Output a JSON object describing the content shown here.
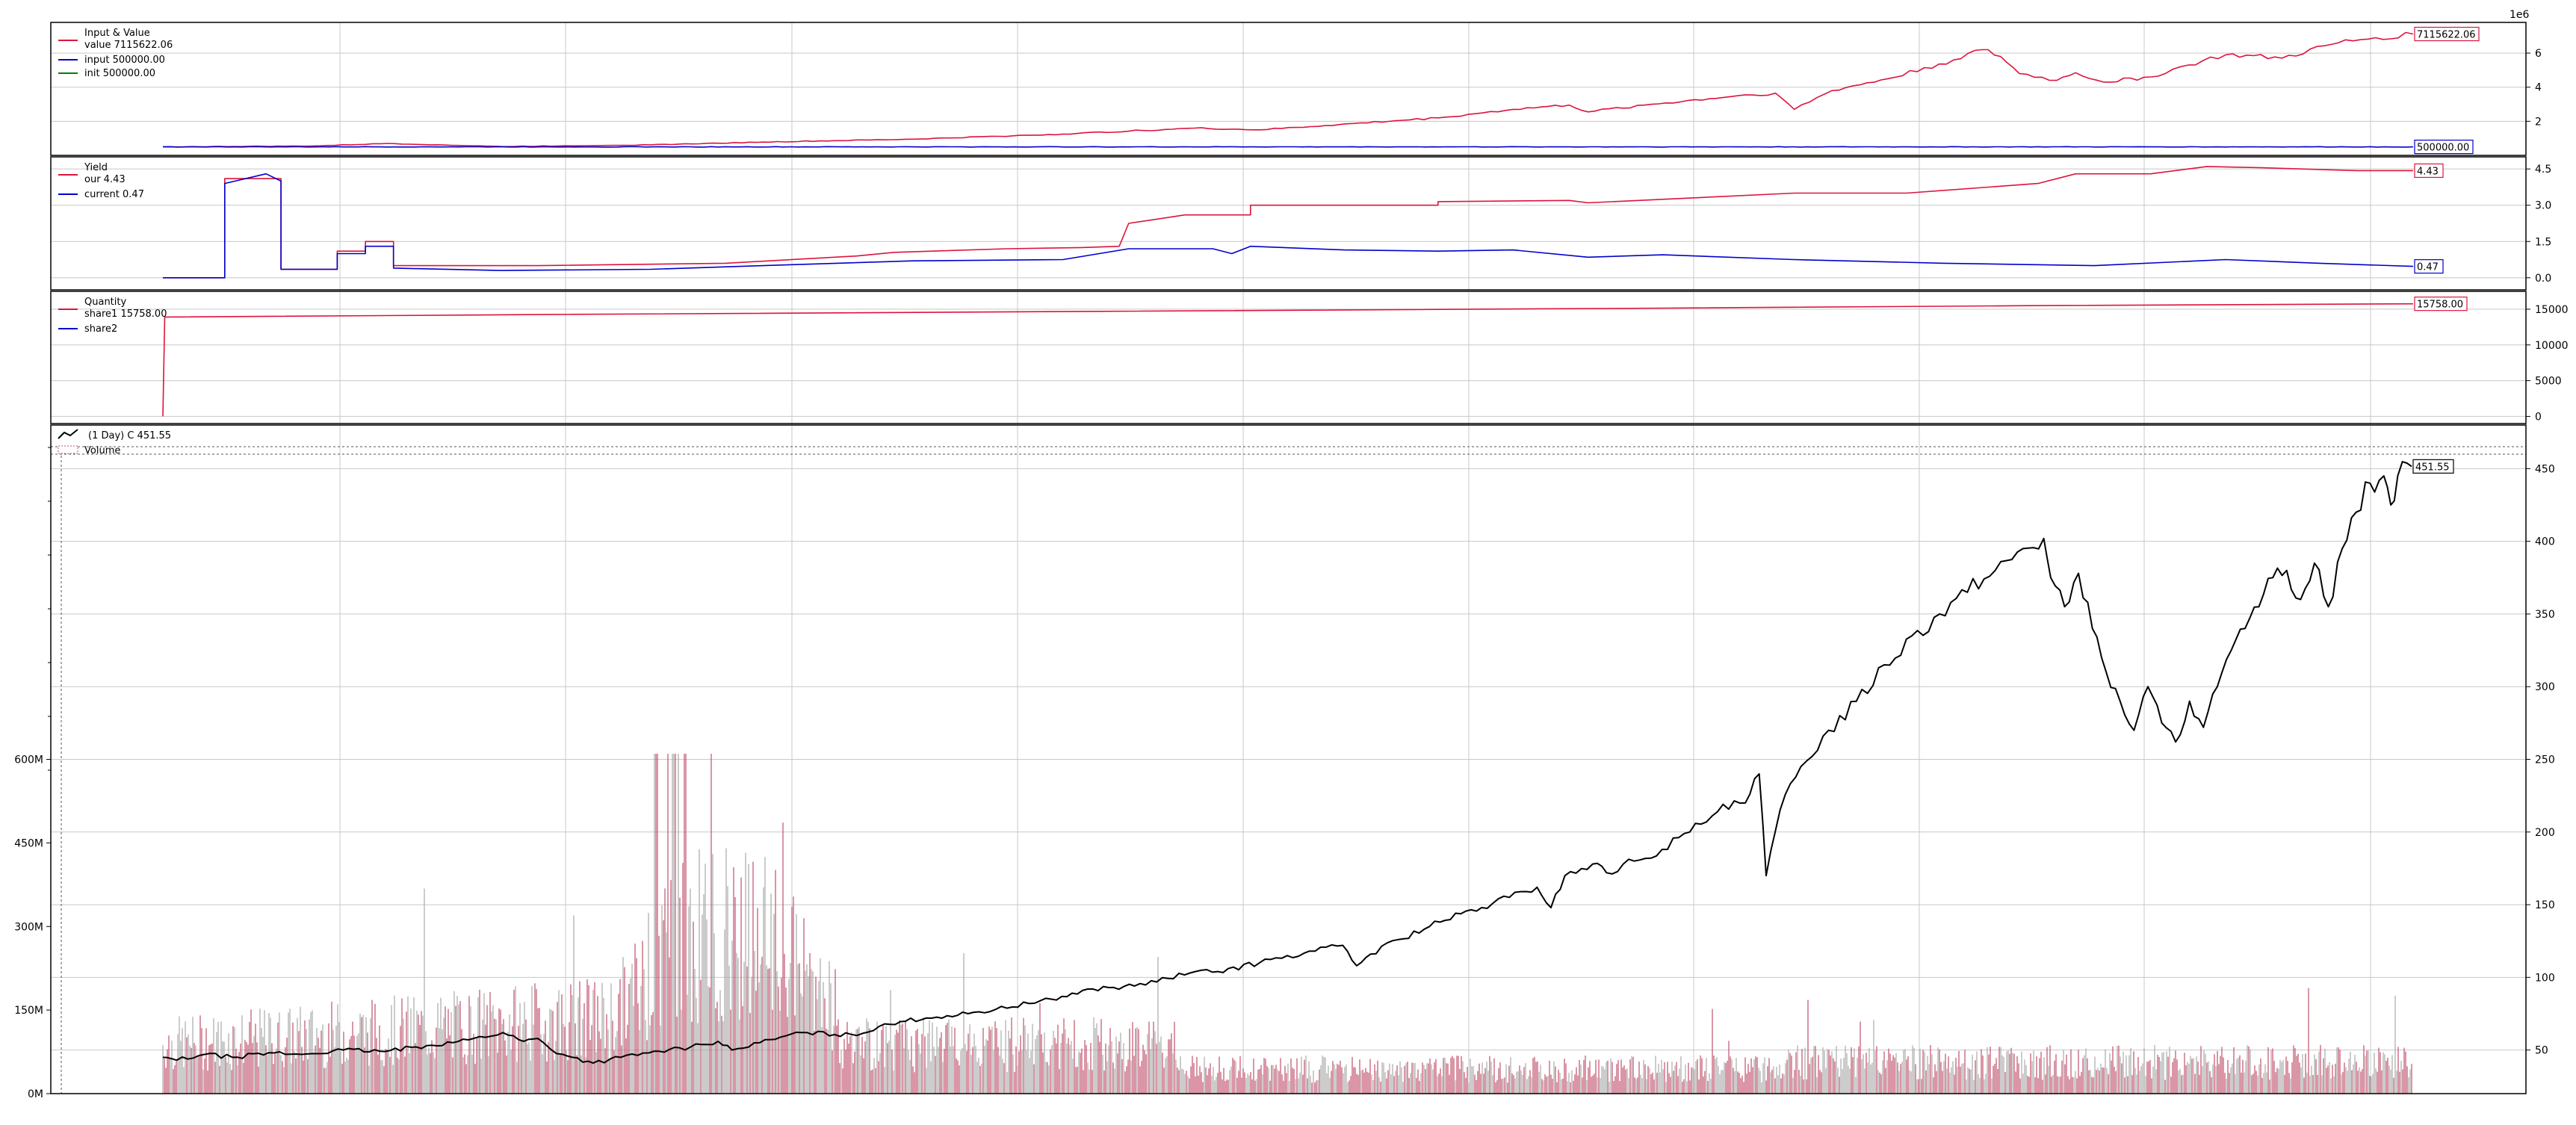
{
  "colors": {
    "red": "#dc143c",
    "blue": "#0000cd",
    "green": "#008000",
    "black": "#000000",
    "vol_up": "#c0506a",
    "vol_down": "#a9a9a9",
    "grid": "#c8c8c8",
    "frame": "#000000"
  },
  "chart_data": [
    {
      "id": "value",
      "type": "line",
      "title": "Input & Value",
      "scale_label": "1e6",
      "ylim": [
        0,
        7.8
      ],
      "yticks": [
        2,
        4,
        6
      ],
      "grid": true,
      "legend_placement": "top-left",
      "legend": [
        "value 7115622.06",
        "input 500000.00",
        "init 500000.00"
      ],
      "series": [
        {
          "name": "value",
          "color": "#dc143c",
          "last_label": "7115622.06",
          "points": [
            [
              0,
              0.5
            ],
            [
              0.08,
              0.55
            ],
            [
              0.12,
              0.7
            ],
            [
              0.18,
              0.52
            ],
            [
              0.26,
              0.62
            ],
            [
              0.32,
              0.78
            ],
            [
              0.4,
              0.95
            ],
            [
              0.48,
              1.25
            ],
            [
              0.55,
              1.6
            ],
            [
              0.585,
              1.5
            ],
            [
              0.62,
              1.75
            ],
            [
              0.68,
              2.2
            ],
            [
              0.72,
              2.7
            ],
            [
              0.75,
              2.95
            ],
            [
              0.76,
              2.55
            ],
            [
              0.79,
              2.95
            ],
            [
              0.84,
              3.5
            ],
            [
              0.86,
              3.65
            ],
            [
              0.87,
              2.7
            ],
            [
              0.89,
              3.8
            ],
            [
              0.92,
              4.5
            ],
            [
              0.955,
              5.6
            ],
            [
              0.97,
              6.2
            ],
            [
              0.98,
              5.8
            ],
            [
              0.99,
              4.8
            ],
            [
              1.01,
              4.4
            ],
            [
              1.02,
              4.85
            ],
            [
              1.035,
              4.3
            ],
            [
              1.06,
              4.6
            ],
            [
              1.08,
              5.3
            ],
            [
              1.1,
              5.9
            ],
            [
              1.13,
              5.7
            ],
            [
              1.16,
              6.6
            ],
            [
              1.18,
              6.9
            ],
            [
              1.2,
              7.12
            ]
          ]
        },
        {
          "name": "input",
          "color": "#0000cd",
          "last_label": "500000.00",
          "points": [
            [
              0,
              0.5
            ],
            [
              1.2,
              0.5
            ]
          ]
        },
        {
          "name": "init",
          "color": "#008000",
          "points": []
        }
      ]
    },
    {
      "id": "yield",
      "type": "line",
      "title": "Yield",
      "ylim": [
        -0.5,
        5.0
      ],
      "yticks": [
        0.0,
        1.5,
        3.0,
        4.5
      ],
      "ytick_labels": [
        "0.0",
        "1.5",
        "3.0",
        "4.5"
      ],
      "grid": true,
      "legend_placement": "top-left",
      "legend": [
        "our 4.43",
        "current 0.47"
      ],
      "series": [
        {
          "name": "our",
          "color": "#dc143c",
          "last_label": "4.43",
          "points": [
            [
              0,
              0
            ],
            [
              0.033,
              0
            ],
            [
              0.033,
              4.1
            ],
            [
              0.063,
              4.1
            ],
            [
              0.063,
              0.35
            ],
            [
              0.093,
              0.35
            ],
            [
              0.093,
              1.1
            ],
            [
              0.108,
              1.1
            ],
            [
              0.108,
              1.5
            ],
            [
              0.123,
              1.5
            ],
            [
              0.123,
              0.5
            ],
            [
              0.2,
              0.5
            ],
            [
              0.3,
              0.6
            ],
            [
              0.37,
              0.9
            ],
            [
              0.39,
              1.05
            ],
            [
              0.45,
              1.2
            ],
            [
              0.49,
              1.25
            ],
            [
              0.51,
              1.3
            ],
            [
              0.515,
              2.25
            ],
            [
              0.545,
              2.6
            ],
            [
              0.58,
              2.6
            ],
            [
              0.58,
              3.0
            ],
            [
              0.68,
              3.0
            ],
            [
              0.68,
              3.15
            ],
            [
              0.75,
              3.2
            ],
            [
              0.76,
              3.1
            ],
            [
              0.87,
              3.5
            ],
            [
              0.93,
              3.5
            ],
            [
              1.0,
              3.9
            ],
            [
              1.02,
              4.3
            ],
            [
              1.06,
              4.3
            ],
            [
              1.09,
              4.6
            ],
            [
              1.12,
              4.55
            ],
            [
              1.17,
              4.43
            ],
            [
              1.2,
              4.43
            ]
          ]
        },
        {
          "name": "current",
          "color": "#0000cd",
          "last_label": "0.47",
          "points": [
            [
              0,
              0
            ],
            [
              0.033,
              0
            ],
            [
              0.033,
              3.9
            ],
            [
              0.055,
              4.3
            ],
            [
              0.063,
              4.0
            ],
            [
              0.063,
              0.35
            ],
            [
              0.093,
              0.35
            ],
            [
              0.093,
              1.0
            ],
            [
              0.108,
              1.0
            ],
            [
              0.108,
              1.3
            ],
            [
              0.123,
              1.3
            ],
            [
              0.123,
              0.4
            ],
            [
              0.18,
              0.3
            ],
            [
              0.26,
              0.35
            ],
            [
              0.32,
              0.5
            ],
            [
              0.4,
              0.7
            ],
            [
              0.48,
              0.75
            ],
            [
              0.515,
              1.2
            ],
            [
              0.56,
              1.2
            ],
            [
              0.57,
              1.0
            ],
            [
              0.58,
              1.3
            ],
            [
              0.63,
              1.15
            ],
            [
              0.68,
              1.1
            ],
            [
              0.72,
              1.15
            ],
            [
              0.76,
              0.85
            ],
            [
              0.8,
              0.95
            ],
            [
              0.87,
              0.75
            ],
            [
              0.95,
              0.6
            ],
            [
              1.03,
              0.5
            ],
            [
              1.1,
              0.75
            ],
            [
              1.15,
              0.6
            ],
            [
              1.2,
              0.47
            ]
          ]
        }
      ]
    },
    {
      "id": "quantity",
      "type": "line",
      "title": "Quantity",
      "ylim": [
        -1000,
        17500
      ],
      "yticks": [
        0,
        5000,
        10000,
        15000
      ],
      "grid": true,
      "legend_placement": "top-left",
      "legend": [
        "share1 15758.00",
        "share2"
      ],
      "series": [
        {
          "name": "share1",
          "color": "#dc143c",
          "last_label": "15758.00",
          "points": [
            [
              0,
              0
            ],
            [
              0.001,
              13900
            ],
            [
              0.2,
              14250
            ],
            [
              0.5,
              14700
            ],
            [
              0.8,
              15150
            ],
            [
              1.0,
              15500
            ],
            [
              1.2,
              15758
            ]
          ]
        },
        {
          "name": "share2",
          "color": "#0000cd",
          "points": []
        }
      ]
    },
    {
      "id": "price",
      "type": "line",
      "legend_placement": "top-left",
      "legend": [
        "(1 Day) C 451.55",
        "Volume"
      ],
      "ylim": [
        20,
        480
      ],
      "yticks": [
        50,
        100,
        150,
        200,
        250,
        300,
        350,
        400,
        450
      ],
      "grid": true,
      "series": [
        {
          "name": "close",
          "color": "#000000",
          "last_label": "451.55",
          "points": [
            [
              0,
              45
            ],
            [
              0.01,
              43
            ],
            [
              0.03,
              47
            ],
            [
              0.05,
              45
            ],
            [
              0.08,
              48
            ],
            [
              0.1,
              47
            ],
            [
              0.13,
              50
            ],
            [
              0.16,
              49
            ],
            [
              0.19,
              53
            ],
            [
              0.22,
              57
            ],
            [
              0.245,
              62
            ],
            [
              0.26,
              56
            ],
            [
              0.27,
              58
            ],
            [
              0.28,
              50
            ],
            [
              0.295,
              45
            ],
            [
              0.31,
              41
            ],
            [
              0.33,
              45
            ],
            [
              0.35,
              48
            ],
            [
              0.38,
              52
            ],
            [
              0.4,
              56
            ],
            [
              0.41,
              50
            ],
            [
              0.43,
              55
            ],
            [
              0.46,
              62
            ],
            [
              0.5,
              60
            ],
            [
              0.52,
              68
            ],
            [
              0.55,
              72
            ],
            [
              0.58,
              75
            ],
            [
              0.6,
              78
            ],
            [
              0.64,
              85
            ],
            [
              0.67,
              92
            ],
            [
              0.7,
              94
            ],
            [
              0.74,
              103
            ],
            [
              0.76,
              104
            ],
            [
              0.79,
              110
            ],
            [
              0.81,
              115
            ],
            [
              0.83,
              118
            ],
            [
              0.85,
              122
            ],
            [
              0.86,
              108
            ],
            [
              0.87,
              116
            ],
            [
              0.89,
              126
            ],
            [
              0.92,
              138
            ],
            [
              0.95,
              148
            ],
            [
              0.97,
              155
            ],
            [
              0.99,
              162
            ],
            [
              1.0,
              148
            ],
            [
              1.01,
              170
            ],
            [
              1.03,
              178
            ],
            [
              1.04,
              172
            ],
            [
              1.06,
              180
            ],
            [
              1.08,
              188
            ],
            [
              1.1,
              200
            ],
            [
              1.12,
              214
            ],
            [
              1.14,
              220
            ],
            [
              1.15,
              240
            ],
            [
              1.155,
              170
            ],
            [
              1.165,
              215
            ],
            [
              1.18,
              245
            ],
            [
              1.2,
              270
            ],
            [
              1.22,
              290
            ],
            [
              1.24,
              315
            ],
            [
              1.26,
              335
            ],
            [
              1.28,
              350
            ],
            [
              1.3,
              365
            ],
            [
              1.32,
              380
            ],
            [
              1.34,
              395
            ],
            [
              1.355,
              402
            ],
            [
              1.36,
              375
            ],
            [
              1.37,
              355
            ],
            [
              1.38,
              378
            ],
            [
              1.39,
              340
            ],
            [
              1.4,
              310
            ],
            [
              1.41,
              290
            ],
            [
              1.42,
              270
            ],
            [
              1.43,
              300
            ],
            [
              1.44,
              275
            ],
            [
              1.45,
              262
            ],
            [
              1.46,
              290
            ],
            [
              1.47,
              272
            ],
            [
              1.48,
              300
            ],
            [
              1.49,
              325
            ],
            [
              1.5,
              340
            ],
            [
              1.51,
              355
            ],
            [
              1.52,
              375
            ],
            [
              1.53,
              380
            ],
            [
              1.54,
              360
            ],
            [
              1.55,
              385
            ],
            [
              1.56,
              355
            ],
            [
              1.57,
              395
            ],
            [
              1.58,
              420
            ],
            [
              1.59,
              440
            ],
            [
              1.6,
              445
            ],
            [
              1.605,
              425
            ],
            [
              1.61,
              445
            ],
            [
              1.62,
              451.55
            ]
          ]
        }
      ],
      "volume_axis": {
        "ylim": [
          0,
          1200
        ],
        "yticks": [
          0,
          150,
          300,
          450,
          600
        ],
        "ytick_labels": [
          "0M",
          "150M",
          "300M",
          "450M",
          "600M"
        ]
      }
    }
  ]
}
